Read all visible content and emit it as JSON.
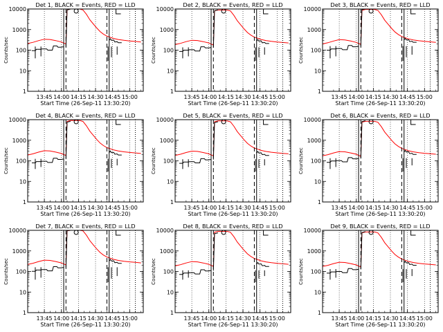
{
  "chart_data": {
    "type": "line",
    "layout": "3x3 grid of panels",
    "xlabel": "Start Time (26-Sep-11 13:30:20)",
    "ylabel": "Counts/sec",
    "y_scale": "log",
    "ylim": [
      1,
      10000
    ],
    "y_ticks": [
      "1",
      "10",
      "100",
      "1000",
      "10000"
    ],
    "xlim": [
      "13:30:20",
      "15:12"
    ],
    "x_ticks": [
      "13:45",
      "14:00",
      "14:15",
      "14:30",
      "14:45",
      "15:00"
    ],
    "series_colors": {
      "events": "#000000",
      "lld": "#ff0000"
    },
    "time_markers": [
      {
        "time": "14:02",
        "style": "solid"
      },
      {
        "time": "14:04",
        "style": "dashed"
      },
      {
        "time": "14:13",
        "style": "circle"
      },
      {
        "time": "14:40",
        "style": "dashed"
      },
      {
        "time": "14:42",
        "style": "solid"
      },
      {
        "time": "14:48",
        "style": "step"
      },
      {
        "time": "15:05",
        "style": "dotted"
      }
    ],
    "panels": [
      {
        "title": "Det 1, BLACK = Events, RED = LLD",
        "events_shift": 0.0,
        "lld_shift": 0.0
      },
      {
        "title": "Det 2, BLACK = Events, RED = LLD",
        "events_shift": -0.04,
        "lld_shift": -0.05
      },
      {
        "title": "Det 3, BLACK = Events, RED = LLD",
        "events_shift": 0.02,
        "lld_shift": -0.02
      },
      {
        "title": "Det 4, BLACK = Events, RED = LLD",
        "events_shift": -0.08,
        "lld_shift": -0.04
      },
      {
        "title": "Det 5, BLACK = Events, RED = LLD",
        "events_shift": -0.1,
        "lld_shift": -0.06
      },
      {
        "title": "Det 6, BLACK = Events, RED = LLD",
        "events_shift": -0.05,
        "lld_shift": -0.08
      },
      {
        "title": "Det 7, BLACK = Events, RED = LLD",
        "events_shift": 0.03,
        "lld_shift": 0.02
      },
      {
        "title": "Det 8, BLACK = Events, RED = LLD",
        "events_shift": -0.12,
        "lld_shift": -0.05
      },
      {
        "title": "Det 9, BLACK = Events, RED = LLD",
        "events_shift": -0.06,
        "lld_shift": -0.08
      }
    ],
    "lld_series": {
      "times": [
        "13:30:20",
        "13:35",
        "13:40",
        "13:45",
        "13:50",
        "13:55",
        "14:00",
        "14:02",
        "14:04",
        "14:05",
        "14:08",
        "14:11",
        "14:13",
        "14:16",
        "14:19",
        "14:22",
        "14:25",
        "14:28",
        "14:31",
        "14:34",
        "14:37",
        "14:40",
        "14:43",
        "14:46",
        "14:50",
        "14:55",
        "15:00",
        "15:05",
        "15:10"
      ],
      "values": [
        210,
        240,
        290,
        340,
        330,
        290,
        250,
        220,
        200,
        9000,
        10000,
        10000,
        10000,
        10000,
        9000,
        5500,
        3000,
        1900,
        1200,
        800,
        600,
        480,
        420,
        370,
        330,
        300,
        280,
        265,
        250
      ]
    },
    "events_series": {
      "segments": [
        {
          "times": [
            "13:34",
            "13:37",
            "13:38",
            "13:42",
            "13:43",
            "13:47",
            "13:48",
            "13:52",
            "13:53",
            "13:56",
            "13:57",
            "14:00",
            "14:01",
            "14:02"
          ],
          "values": [
            95,
            95,
            110,
            110,
            115,
            115,
            100,
            100,
            160,
            160,
            140,
            140,
            145,
            145
          ]
        },
        {
          "times": [
            "14:04",
            "14:05",
            "14:08"
          ],
          "values": [
            145,
            9000,
            10000
          ]
        },
        {
          "times": [
            "14:42",
            "14:43",
            "14:44",
            "14:46",
            "14:47",
            "14:49",
            "14:50",
            "14:53"
          ],
          "values": [
            300,
            360,
            300,
            310,
            250,
            260,
            230,
            230
          ]
        }
      ],
      "drops": [
        {
          "time": "13:37",
          "low": 40
        },
        {
          "time": "13:42",
          "low": 50
        },
        {
          "time": "14:41",
          "low": 30
        },
        {
          "time": "14:44",
          "low": 45
        },
        {
          "time": "14:49",
          "low": 60
        }
      ]
    }
  }
}
